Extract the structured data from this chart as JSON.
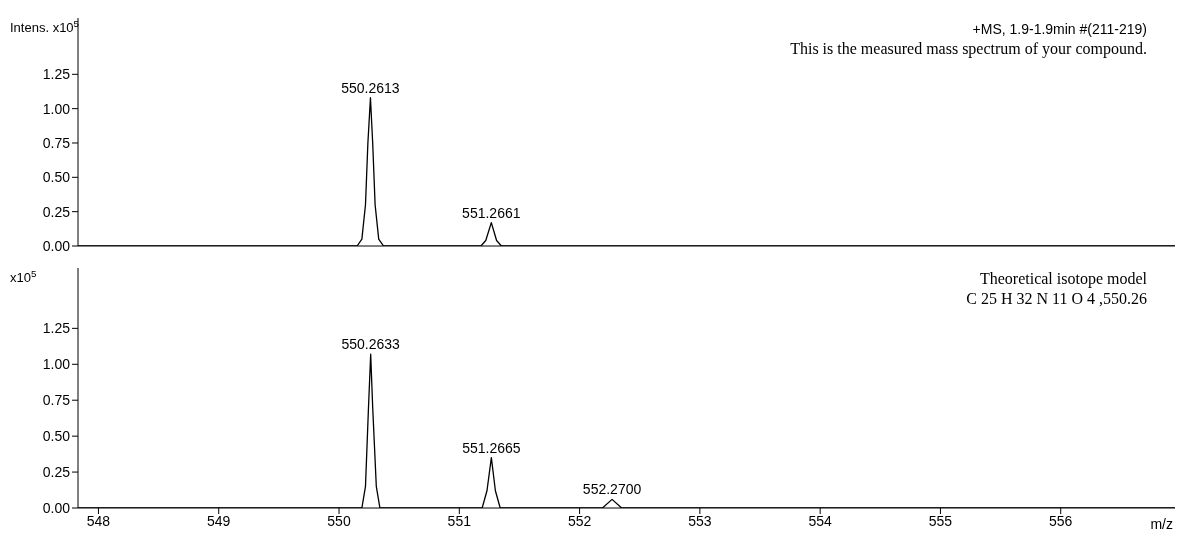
{
  "chart_data": [
    {
      "type": "line",
      "ylabel": "Intens. x10$^{5}$",
      "marker": "none",
      "grid": false,
      "legend": false,
      "tick_labels": "y",
      "xlim": [
        547.83,
        556.95
      ],
      "xticks": [
        548,
        549,
        550,
        551,
        552,
        553,
        554,
        555,
        556
      ],
      "ylim": [
        0,
        1.66
      ],
      "yticks": [
        {
          "value": 0,
          "label": "0.00"
        },
        {
          "value": 0.25,
          "label": "0.25"
        },
        {
          "value": 0.5,
          "label": "0.50"
        },
        {
          "value": 0.75,
          "label": "0.75"
        },
        {
          "value": 1,
          "label": "1.00"
        },
        {
          "value": 1.25,
          "label": "1.25"
        }
      ],
      "series": [
        {
          "color": "#000000",
          "x": [
            547.83,
            550.15,
            550.19,
            550.22,
            550.24,
            550.2613,
            550.28,
            550.3,
            550.33,
            550.37,
            551.18,
            551.22,
            551.2661,
            551.31,
            551.35,
            556.95
          ],
          "values": [
            0,
            0,
            0.05,
            0.3,
            0.75,
            1.08,
            0.75,
            0.3,
            0.05,
            0,
            0,
            0.04,
            0.17,
            0.04,
            0,
            0
          ]
        }
      ],
      "annotations": [
        {
          "text": "550.2613",
          "x": 550.2613,
          "y": 1.08
        },
        {
          "text": "551.2661",
          "x": 551.2661,
          "y": 0.17
        },
        "+MS, 1.9-1.9min #(211-219)",
        "This is the measured mass spectrum of your compound."
      ]
    },
    {
      "type": "line",
      "ylabel": "x10$^{5}$",
      "xlabel": "m/z",
      "marker": "none",
      "grid": false,
      "legend": false,
      "xlim": [
        547.83,
        556.95
      ],
      "xticks": [
        548,
        549,
        550,
        551,
        552,
        553,
        554,
        555,
        556
      ],
      "ylim": [
        0,
        1.67
      ],
      "yticks": [
        {
          "value": 0,
          "label": "0.00"
        },
        {
          "value": 0.25,
          "label": "0.25"
        },
        {
          "value": 0.5,
          "label": "0.50"
        },
        {
          "value": 0.75,
          "label": "0.75"
        },
        {
          "value": 1,
          "label": "1.00"
        },
        {
          "value": 1.25,
          "label": "1.25"
        }
      ],
      "series": [
        {
          "color": "#000000",
          "x": [
            547.83,
            550.19,
            550.22,
            550.245,
            550.2633,
            550.28,
            550.31,
            550.34,
            551.19,
            551.23,
            551.2665,
            551.3,
            551.34,
            552.19,
            552.27,
            552.35,
            556.95
          ],
          "values": [
            0,
            0,
            0.15,
            0.7,
            1.07,
            0.7,
            0.15,
            0,
            0,
            0.12,
            0.35,
            0.12,
            0,
            0,
            0.06,
            0,
            0
          ]
        }
      ],
      "annotations": [
        {
          "text": "550.2633",
          "x": 550.2633,
          "y": 1.07
        },
        {
          "text": "551.2665",
          "x": 551.2665,
          "y": 0.35
        },
        {
          "text": "552.2700",
          "x": 552.27,
          "y": 0.06
        },
        "Theoretical isotope model",
        "C 25 H 32 N 11 O 4 ,550.26"
      ]
    }
  ]
}
